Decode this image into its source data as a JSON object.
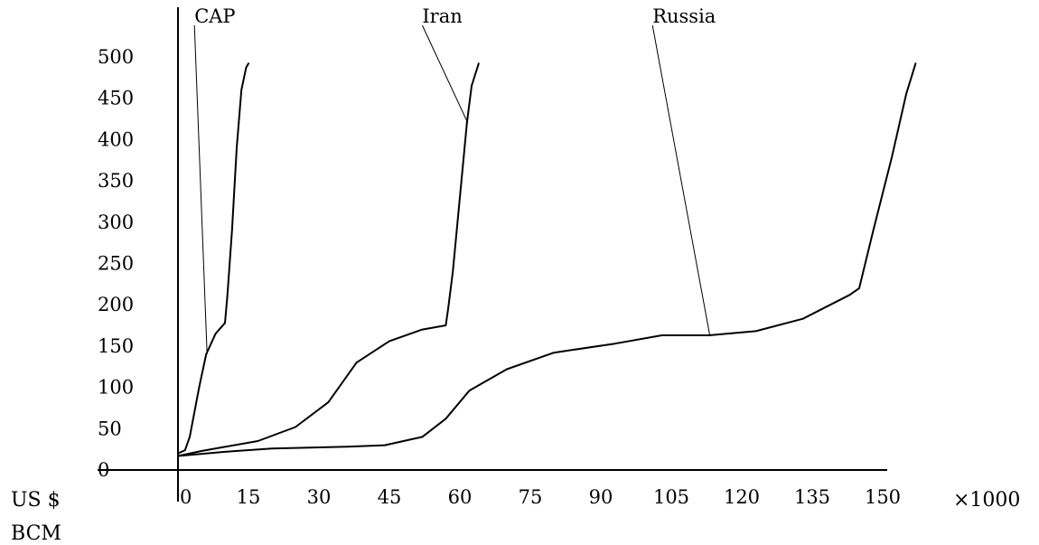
{
  "chart_data": {
    "type": "line",
    "title": "",
    "xlabel_unit": "US $",
    "ylabel_unit": "BCM",
    "x_multiplier_label": "×1000",
    "x_ticks": [
      0,
      15,
      30,
      45,
      60,
      75,
      90,
      105,
      120,
      135,
      150
    ],
    "y_ticks": [
      0,
      50,
      100,
      150,
      200,
      250,
      300,
      350,
      400,
      450,
      500
    ],
    "xlim": [
      0,
      150
    ],
    "ylim": [
      0,
      500
    ],
    "grid": false,
    "series": [
      {
        "name": "CAP",
        "label_x": 3.5,
        "points": [
          [
            0,
            20
          ],
          [
            1.5,
            24
          ],
          [
            2.5,
            40
          ],
          [
            4.5,
            100
          ],
          [
            6,
            140
          ],
          [
            8,
            165
          ],
          [
            10,
            178
          ],
          [
            10.5,
            210
          ],
          [
            11.5,
            290
          ],
          [
            12.5,
            390
          ],
          [
            13.5,
            460
          ],
          [
            14.5,
            487
          ],
          [
            15,
            492
          ]
        ]
      },
      {
        "name": "Iran",
        "label_x": 52,
        "points": [
          [
            0,
            17
          ],
          [
            5,
            23
          ],
          [
            10,
            28
          ],
          [
            17,
            35
          ],
          [
            25,
            52
          ],
          [
            32,
            82
          ],
          [
            38,
            130
          ],
          [
            45,
            156
          ],
          [
            52,
            170
          ],
          [
            57,
            175
          ],
          [
            57.5,
            195
          ],
          [
            58.5,
            240
          ],
          [
            60,
            330
          ],
          [
            61.5,
            420
          ],
          [
            62.5,
            465
          ],
          [
            64,
            492
          ]
        ]
      },
      {
        "name": "Russia",
        "label_x": 101,
        "points": [
          [
            0,
            17
          ],
          [
            10,
            22
          ],
          [
            20,
            26
          ],
          [
            35,
            28
          ],
          [
            44,
            30
          ],
          [
            52,
            40
          ],
          [
            57,
            62
          ],
          [
            62,
            96
          ],
          [
            70,
            122
          ],
          [
            80,
            142
          ],
          [
            93,
            153
          ],
          [
            103,
            163
          ],
          [
            113,
            163
          ],
          [
            123,
            168
          ],
          [
            133,
            183
          ],
          [
            143,
            212
          ],
          [
            145,
            220
          ],
          [
            148,
            290
          ],
          [
            152,
            380
          ],
          [
            155,
            455
          ],
          [
            157,
            492
          ]
        ]
      }
    ]
  }
}
